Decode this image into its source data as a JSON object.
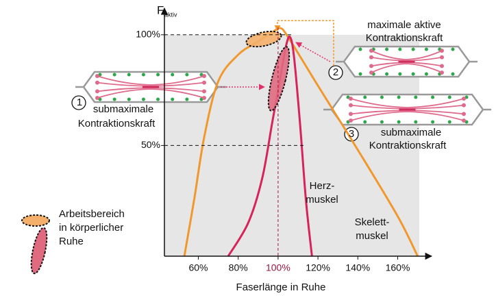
{
  "chart_data": {
    "type": "line",
    "y_axis_label": "F",
    "y_axis_label_sub": "aktiv",
    "x_axis_label": "Faserlänge in Ruhe",
    "xlim": [
      43,
      177
    ],
    "ylim": [
      0,
      112
    ],
    "xticks": [
      {
        "value": 60,
        "label": "60%"
      },
      {
        "value": 80,
        "label": "80%"
      },
      {
        "value": 100,
        "label": "100%"
      },
      {
        "value": 120,
        "label": "120%"
      },
      {
        "value": 140,
        "label": "140%"
      },
      {
        "value": 160,
        "label": "160%"
      }
    ],
    "yticks": [
      {
        "value": 50,
        "label": "50%"
      },
      {
        "value": 100,
        "label": "100%"
      }
    ],
    "series": [
      {
        "name_lines": [
          "Skelett-",
          "muskel"
        ],
        "color": "#f0982e",
        "x": [
          53,
          58,
          63,
          70,
          80,
          90,
          97,
          101,
          105,
          120,
          140,
          160,
          170
        ],
        "values": [
          0,
          26,
          54,
          79,
          91,
          97,
          101,
          103,
          99,
          77,
          48,
          18,
          0
        ]
      },
      {
        "name_lines": [
          "Herz-",
          "muskel"
        ],
        "color": "#d6245a",
        "x": [
          75,
          85,
          92,
          97,
          101,
          104,
          106,
          108,
          111,
          114,
          117
        ],
        "values": [
          0,
          15,
          35,
          60,
          80,
          95,
          99,
          90,
          60,
          25,
          0
        ]
      }
    ],
    "annotations": [
      {
        "number": "1",
        "lines": [
          "submaximale",
          "Kontraktionskraft"
        ]
      },
      {
        "number": "2",
        "lines": [
          "maximale aktive",
          "Kontraktionskraft"
        ]
      },
      {
        "number": "3",
        "lines": [
          "submaximale",
          "Kontraktionskraft"
        ]
      }
    ],
    "legend_lines": [
      "Arbeitsbereich",
      "in körperlicher",
      "Ruhe"
    ]
  }
}
